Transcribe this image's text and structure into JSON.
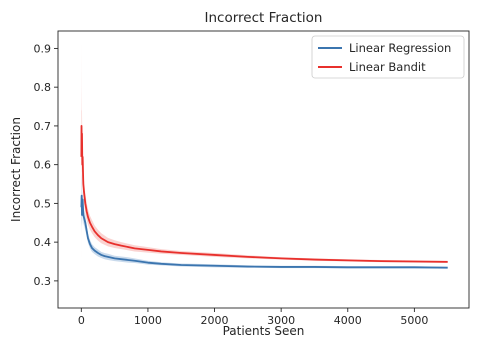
{
  "chart_data": {
    "type": "line",
    "title": "Incorrect Fraction",
    "xlabel": "Patients Seen",
    "ylabel": "Incorrect Fraction",
    "xlim": [
      -350,
      5820
    ],
    "ylim": [
      0.23,
      0.945
    ],
    "xticks": [
      0,
      1000,
      2000,
      3000,
      4000,
      5000
    ],
    "yticks": [
      0.3,
      0.4,
      0.5,
      0.6,
      0.7,
      0.8,
      0.9
    ],
    "xtick_labels": [
      "0",
      "1000",
      "2000",
      "3000",
      "4000",
      "5000"
    ],
    "ytick_labels": [
      "0.3",
      "0.4",
      "0.5",
      "0.6",
      "0.7",
      "0.8",
      "0.9"
    ],
    "grid": false,
    "legend_position": "top-right",
    "series": [
      {
        "name": "Linear Regression",
        "color": "#3b75af",
        "band_color": "#9dbbdc",
        "x": [
          1,
          5,
          10,
          20,
          30,
          45,
          60,
          80,
          100,
          130,
          160,
          200,
          250,
          300,
          350,
          400,
          500,
          600,
          700,
          800,
          1000,
          1200,
          1500,
          2000,
          2500,
          3000,
          3500,
          4000,
          4500,
          5000,
          5500
        ],
        "y": [
          0.49,
          0.52,
          0.47,
          0.51,
          0.47,
          0.46,
          0.45,
          0.43,
          0.41,
          0.395,
          0.385,
          0.378,
          0.372,
          0.367,
          0.364,
          0.362,
          0.358,
          0.356,
          0.354,
          0.352,
          0.347,
          0.344,
          0.341,
          0.339,
          0.337,
          0.336,
          0.336,
          0.335,
          0.335,
          0.335,
          0.334
        ],
        "lower": [
          0.42,
          0.46,
          0.44,
          0.48,
          0.45,
          0.44,
          0.43,
          0.415,
          0.398,
          0.384,
          0.375,
          0.369,
          0.363,
          0.359,
          0.356,
          0.354,
          0.351,
          0.349,
          0.347,
          0.346,
          0.342,
          0.34,
          0.337,
          0.335,
          0.334,
          0.333,
          0.333,
          0.332,
          0.332,
          0.332,
          0.332
        ],
        "upper": [
          0.56,
          0.58,
          0.5,
          0.54,
          0.49,
          0.48,
          0.47,
          0.445,
          0.422,
          0.406,
          0.395,
          0.387,
          0.381,
          0.375,
          0.372,
          0.37,
          0.365,
          0.363,
          0.361,
          0.358,
          0.352,
          0.348,
          0.345,
          0.343,
          0.34,
          0.339,
          0.339,
          0.338,
          0.338,
          0.338,
          0.336
        ]
      },
      {
        "name": "Linear Bandit",
        "color": "#e8302c",
        "band_color": "#f5aeac",
        "x": [
          1,
          3,
          6,
          10,
          15,
          20,
          30,
          40,
          60,
          80,
          100,
          130,
          160,
          200,
          250,
          300,
          400,
          500,
          600,
          800,
          1000,
          1200,
          1500,
          2000,
          2500,
          3000,
          3500,
          4000,
          4500,
          5000,
          5500
        ],
        "y": [
          0.62,
          0.7,
          0.66,
          0.68,
          0.6,
          0.62,
          0.55,
          0.53,
          0.5,
          0.48,
          0.465,
          0.45,
          0.44,
          0.428,
          0.418,
          0.41,
          0.4,
          0.395,
          0.391,
          0.384,
          0.38,
          0.376,
          0.372,
          0.367,
          0.362,
          0.358,
          0.355,
          0.353,
          0.351,
          0.35,
          0.349
        ],
        "lower": [
          0.35,
          0.58,
          0.58,
          0.62,
          0.55,
          0.58,
          0.52,
          0.5,
          0.475,
          0.458,
          0.445,
          0.432,
          0.423,
          0.413,
          0.404,
          0.397,
          0.389,
          0.385,
          0.382,
          0.376,
          0.373,
          0.37,
          0.367,
          0.362,
          0.358,
          0.355,
          0.352,
          0.35,
          0.348,
          0.347,
          0.346
        ],
        "upper": [
          0.915,
          0.8,
          0.74,
          0.74,
          0.66,
          0.66,
          0.58,
          0.56,
          0.525,
          0.502,
          0.485,
          0.468,
          0.457,
          0.443,
          0.432,
          0.423,
          0.411,
          0.405,
          0.4,
          0.392,
          0.387,
          0.382,
          0.377,
          0.372,
          0.366,
          0.361,
          0.358,
          0.356,
          0.354,
          0.353,
          0.352
        ]
      }
    ]
  }
}
